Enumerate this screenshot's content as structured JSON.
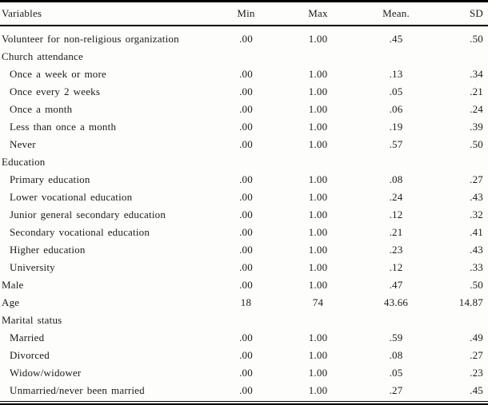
{
  "colors": {
    "text": "#1b1b1b",
    "rule": "#000000",
    "background": "#fdfdfc"
  },
  "table": {
    "columns": [
      "Variables",
      "Min",
      "Max",
      "Mean.",
      "SD"
    ],
    "rows": [
      {
        "label": "Volunteer for non-religious organization",
        "indent": false,
        "values": [
          ".00",
          "1.00",
          ".45",
          ".50"
        ]
      },
      {
        "label": "Church attendance",
        "indent": false,
        "values": [
          "",
          "",
          "",
          ""
        ]
      },
      {
        "label": "Once a week or more",
        "indent": true,
        "values": [
          ".00",
          "1.00",
          ".13",
          ".34"
        ]
      },
      {
        "label": "Once every 2 weeks",
        "indent": true,
        "values": [
          ".00",
          "1.00",
          ".05",
          ".21"
        ]
      },
      {
        "label": "Once a month",
        "indent": true,
        "values": [
          ".00",
          "1.00",
          ".06",
          ".24"
        ]
      },
      {
        "label": "Less than once a month",
        "indent": true,
        "values": [
          ".00",
          "1.00",
          ".19",
          ".39"
        ]
      },
      {
        "label": "Never",
        "indent": true,
        "values": [
          ".00",
          "1.00",
          ".57",
          ".50"
        ]
      },
      {
        "label": "Education",
        "indent": false,
        "values": [
          "",
          "",
          "",
          ""
        ]
      },
      {
        "label": "Primary education",
        "indent": true,
        "values": [
          ".00",
          "1.00",
          ".08",
          ".27"
        ]
      },
      {
        "label": "Lower vocational education",
        "indent": true,
        "values": [
          ".00",
          "1.00",
          ".24",
          ".43"
        ]
      },
      {
        "label": "Junior general secondary education",
        "indent": true,
        "values": [
          ".00",
          "1.00",
          ".12",
          ".32"
        ]
      },
      {
        "label": "Secondary vocational education",
        "indent": true,
        "values": [
          ".00",
          "1.00",
          ".21",
          ".41"
        ]
      },
      {
        "label": "Higher education",
        "indent": true,
        "values": [
          ".00",
          "1.00",
          ".23",
          ".43"
        ]
      },
      {
        "label": "University",
        "indent": true,
        "values": [
          ".00",
          "1.00",
          ".12",
          ".33"
        ]
      },
      {
        "label": "Male",
        "indent": false,
        "values": [
          ".00",
          "1.00",
          ".47",
          ".50"
        ]
      },
      {
        "label": "Age",
        "indent": false,
        "values": [
          "18",
          "74",
          "43.66",
          "14.87"
        ]
      },
      {
        "label": "Marital status",
        "indent": false,
        "values": [
          "",
          "",
          "",
          ""
        ]
      },
      {
        "label": "Married",
        "indent": true,
        "values": [
          ".00",
          "1.00",
          ".59",
          ".49"
        ]
      },
      {
        "label": "Divorced",
        "indent": true,
        "values": [
          ".00",
          "1.00",
          ".08",
          ".27"
        ]
      },
      {
        "label": "Widow/widower",
        "indent": true,
        "values": [
          ".00",
          "1.00",
          ".05",
          ".23"
        ]
      },
      {
        "label": "Unmarried/never been married",
        "indent": true,
        "values": [
          ".00",
          "1.00",
          ".27",
          ".45"
        ]
      }
    ]
  }
}
